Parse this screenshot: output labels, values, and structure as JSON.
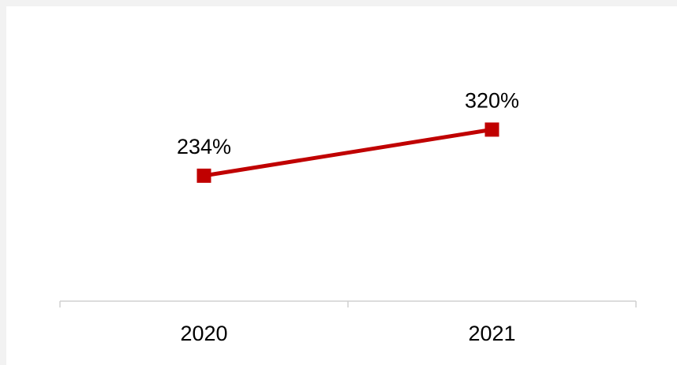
{
  "chart_data": {
    "type": "line",
    "categories": [
      "2020",
      "2021"
    ],
    "series": [
      {
        "values": [
          234,
          320
        ],
        "labels": [
          "234%",
          "320%"
        ],
        "color": "#c00000",
        "marker": "square"
      }
    ],
    "title": "",
    "xlabel": "",
    "ylabel": "",
    "ylim": [
      0,
      550
    ],
    "grid": false,
    "legend": "none"
  }
}
